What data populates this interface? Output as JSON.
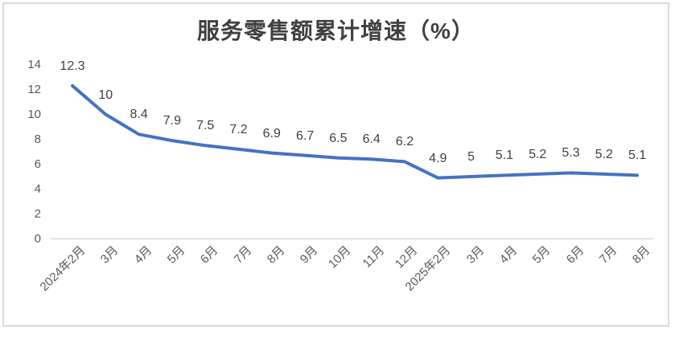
{
  "chart_data": {
    "type": "line",
    "title": "服务零售额累计增速（%）",
    "categories": [
      "2024年2月",
      "3月",
      "4月",
      "5月",
      "6月",
      "7月",
      "8月",
      "9月",
      "10月",
      "11月",
      "12月",
      "2025年2月",
      "3月",
      "4月",
      "5月",
      "6月",
      "7月",
      "8月"
    ],
    "values": [
      12.3,
      10,
      8.4,
      7.9,
      7.5,
      7.2,
      6.9,
      6.7,
      6.5,
      6.4,
      6.2,
      4.9,
      5,
      5.1,
      5.2,
      5.3,
      5.2,
      5.1
    ],
    "point_labels": [
      "12.3",
      "10",
      "8.4",
      "7.9",
      "7.5",
      "7.2",
      "6.9",
      "6.7",
      "6.5",
      "6.4",
      "6.2",
      "4.9",
      "5",
      "5.1",
      "5.2",
      "5.3",
      "5.2",
      "5.1"
    ],
    "y_ticks": [
      "0",
      "2",
      "4",
      "6",
      "8",
      "10",
      "12",
      "14"
    ],
    "ylim": [
      0,
      14
    ],
    "xlabel": "",
    "ylabel": "",
    "grid": false,
    "legend": "none",
    "x_label_rotation_deg": -45,
    "colors": {
      "line": "#4472C4",
      "axis_line": "#D9D9D9",
      "frame_border": "#D9D9D9",
      "tick_label": "#595959",
      "data_label": "#404040",
      "title": "#404040"
    }
  }
}
